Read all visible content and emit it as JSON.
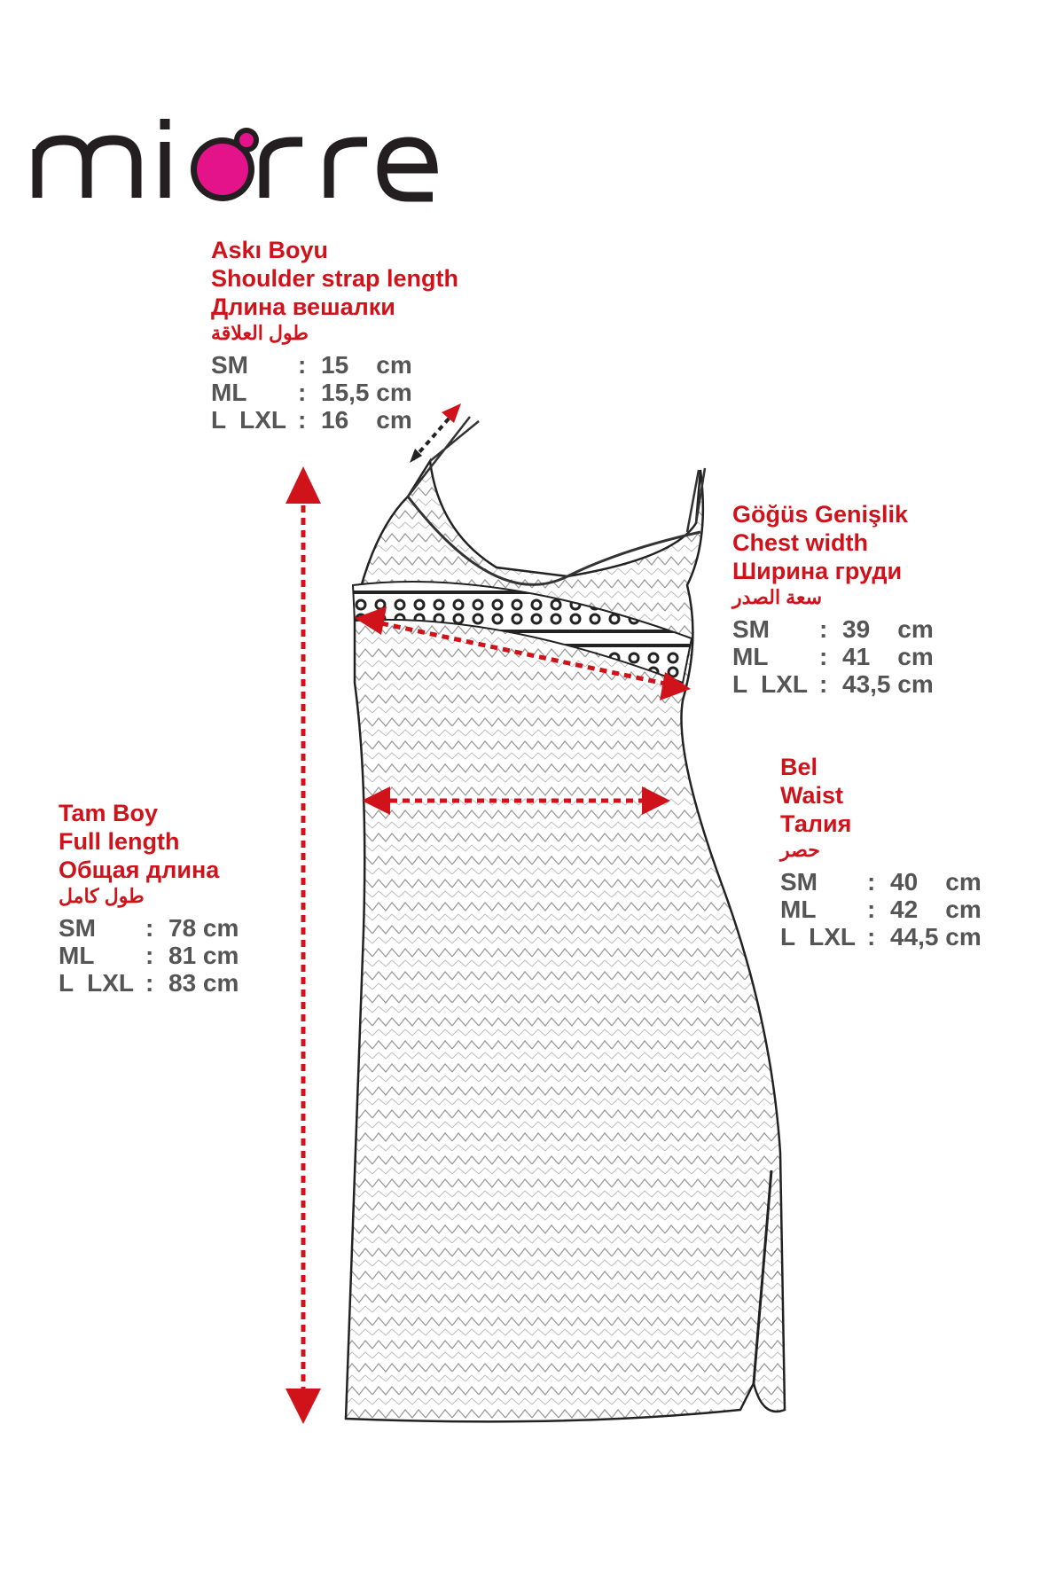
{
  "brand": {
    "logo_text": "miorre",
    "accent_color": "#e4138a"
  },
  "colors": {
    "label": "#d0121b",
    "values": "#555555",
    "arrows": "#d0121b"
  },
  "measurements": {
    "strap": {
      "tr": "Askı Boyu",
      "en": "Shoulder strap length",
      "ru": "Длина вешалки",
      "ar": "طول العلاقة",
      "rows": [
        {
          "size": "SM",
          "value": "15    cm"
        },
        {
          "size": "ML",
          "value": "15,5 cm"
        },
        {
          "size": "L  LXL",
          "value": "16    cm"
        }
      ]
    },
    "chest": {
      "tr": "Göğüs Genişlik",
      "en": "Chest width",
      "ru": "Ширина груди",
      "ar": "سعة الصدر",
      "rows": [
        {
          "size": "SM",
          "value": "39    cm"
        },
        {
          "size": "ML",
          "value": "41    cm"
        },
        {
          "size": "L  LXL",
          "value": "43,5 cm"
        }
      ]
    },
    "waist": {
      "tr": "Bel",
      "en": "Waist",
      "ru": "Талия",
      "ar": "حصر",
      "rows": [
        {
          "size": "SM",
          "value": "40    cm"
        },
        {
          "size": "ML",
          "value": "42    cm"
        },
        {
          "size": "L  LXL",
          "value": "44,5 cm"
        }
      ]
    },
    "full_length": {
      "tr": "Tam Boy",
      "en": "Full length",
      "ru": "Общая длина",
      "ar": "طول كامل",
      "rows": [
        {
          "size": "SM",
          "value": "78 cm"
        },
        {
          "size": "ML",
          "value": "81 cm"
        },
        {
          "size": "L  LXL",
          "value": "83 cm"
        }
      ]
    }
  }
}
